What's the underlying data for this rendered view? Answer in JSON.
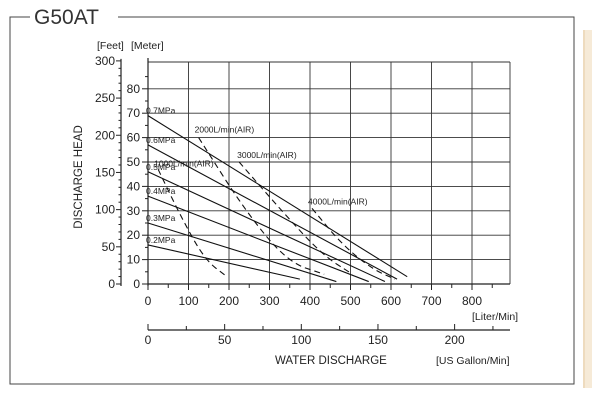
{
  "title": "G50AT",
  "chart_data": {
    "type": "line",
    "title": "G50AT",
    "ylabel": "DISCHARGE HEAD",
    "y_units": [
      "[Feet]",
      "[Meter]"
    ],
    "feet_ticks": [
      "0",
      "50",
      "100",
      "150",
      "200",
      "250",
      "300"
    ],
    "meter_ticks": [
      "0",
      "10",
      "20",
      "30",
      "40",
      "50",
      "60",
      "70",
      "80"
    ],
    "meter_ylim": [
      0,
      85
    ],
    "liter_ticks": [
      "0",
      "100",
      "200",
      "300",
      "400",
      "500",
      "600",
      "700",
      "800"
    ],
    "liter_unit": "[Liter/Min]",
    "liter_xlim": [
      0,
      900
    ],
    "gallon_ticks": [
      "0",
      "50",
      "100",
      "150",
      "200"
    ],
    "gallon_unit": "[US Gallon/Min]",
    "xlabel": "WATER DISCHARGE",
    "grid": true,
    "pressure_series": [
      {
        "name": "0.7MPa",
        "points": [
          [
            0,
            69
          ],
          [
            640,
            3
          ]
        ]
      },
      {
        "name": "0.6MPa",
        "points": [
          [
            0,
            57
          ],
          [
            615,
            2
          ]
        ]
      },
      {
        "name": "0.5MPa",
        "points": [
          [
            0,
            46
          ],
          [
            585,
            1
          ]
        ]
      },
      {
        "name": "0.4MPa",
        "points": [
          [
            0,
            36
          ],
          [
            545,
            1
          ]
        ]
      },
      {
        "name": "0.3MPa",
        "points": [
          [
            0,
            25
          ],
          [
            465,
            1
          ]
        ]
      },
      {
        "name": "0.2MPa",
        "points": [
          [
            0,
            16
          ],
          [
            375,
            2
          ]
        ]
      }
    ],
    "air_series": [
      {
        "name": "1000L/min(AIR)",
        "points": [
          [
            25,
            47
          ],
          [
            80,
            28
          ],
          [
            140,
            10
          ],
          [
            195,
            3
          ]
        ]
      },
      {
        "name": "2000L/min(AIR)",
        "points": [
          [
            125,
            60
          ],
          [
            240,
            30
          ],
          [
            345,
            9
          ],
          [
            435,
            4
          ]
        ]
      },
      {
        "name": "3000L/min(AIR)",
        "points": [
          [
            225,
            50
          ],
          [
            330,
            30
          ],
          [
            430,
            12
          ],
          [
            505,
            4
          ]
        ]
      },
      {
        "name": "4000L/min(AIR)",
        "points": [
          [
            405,
            31
          ],
          [
            480,
            16
          ],
          [
            555,
            6
          ],
          [
            610,
            2
          ]
        ]
      }
    ]
  }
}
